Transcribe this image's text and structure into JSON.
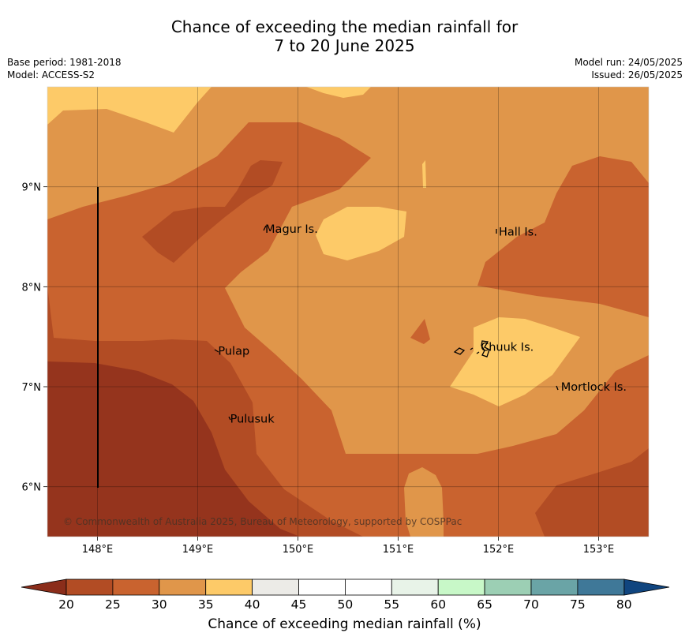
{
  "title": {
    "line1": "Chance of exceeding the median rainfall for",
    "line2": "7 to 20 June 2025"
  },
  "meta": {
    "base_period": "Base period: 1981-2018",
    "model": "Model: ACCESS-S2",
    "model_run": "Model run: 24/05/2025",
    "issued": "Issued: 26/05/2025"
  },
  "map": {
    "lon_ticks": [
      "148°E",
      "149°E",
      "150°E",
      "151°E",
      "152°E",
      "153°E"
    ],
    "lat_ticks": [
      "9°N",
      "8°N",
      "7°N",
      "6°N"
    ],
    "extent": {
      "lon": [
        147.5,
        153.5
      ],
      "lat": [
        5.5,
        10.0
      ]
    },
    "places": [
      {
        "name": "Magur Is.",
        "lon": 149.65,
        "lat": 8.58
      },
      {
        "name": "Hall Is.",
        "lon": 151.98,
        "lat": 8.55
      },
      {
        "name": "Pulap",
        "lon": 149.18,
        "lat": 7.36
      },
      {
        "name": "Chuuk Is.",
        "lon": 151.8,
        "lat": 7.4
      },
      {
        "name": "Mortlock Is.",
        "lon": 152.6,
        "lat": 7.0
      },
      {
        "name": "Pulusuk",
        "lon": 149.3,
        "lat": 6.68
      }
    ],
    "copyright": "© Commonwealth of Australia 2025, Bureau of Meteorology, supported by COSPPac"
  },
  "colorbar": {
    "ticks": [
      "20",
      "25",
      "30",
      "35",
      "40",
      "45",
      "50",
      "55",
      "60",
      "65",
      "70",
      "75",
      "80"
    ],
    "colors": [
      "#b24c24",
      "#c9632f",
      "#e0964a",
      "#fdca68",
      "#ecebe7",
      "#ffffff",
      "#ffffff",
      "#e8f3e8",
      "#c8f8c8",
      "#9ccfb4",
      "#6aa4a6",
      "#3f7898"
    ],
    "under_color": "#8b2d1a",
    "over_color": "#10457f",
    "label": "Chance of exceeding median rainfall (%)"
  },
  "fill_colors": {
    "c20": "#95341d",
    "c25": "#b24c24",
    "c30": "#c9632f",
    "c35": "#e0964a",
    "c40": "#fdca68"
  }
}
